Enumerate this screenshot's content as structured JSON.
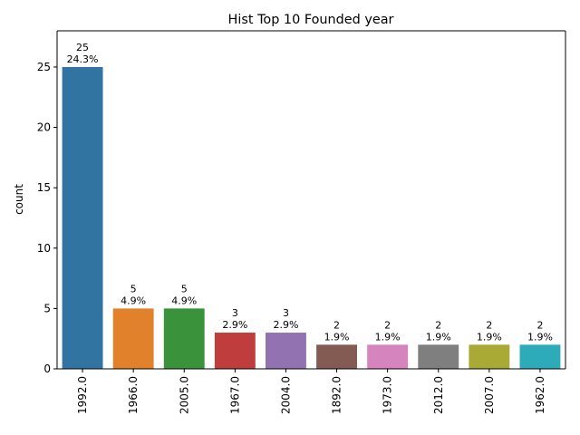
{
  "chart_data": {
    "type": "bar",
    "title": "Hist Top 10 Founded year",
    "xlabel": "",
    "ylabel": "count",
    "ylim": [
      0,
      28
    ],
    "yticks": [
      0,
      5,
      10,
      15,
      20,
      25
    ],
    "grid": false,
    "categories": [
      "1992.0",
      "1966.0",
      "2005.0",
      "1967.0",
      "2004.0",
      "1892.0",
      "1973.0",
      "2012.0",
      "2007.0",
      "1962.0"
    ],
    "values": [
      25,
      5,
      5,
      3,
      3,
      2,
      2,
      2,
      2,
      2
    ],
    "percent_labels": [
      "24.3%",
      "4.9%",
      "4.9%",
      "2.9%",
      "2.9%",
      "1.9%",
      "1.9%",
      "1.9%",
      "1.9%",
      "1.9%"
    ],
    "colors": [
      "#3274a1",
      "#e1812c",
      "#3a923a",
      "#c03d3e",
      "#9372b2",
      "#845b53",
      "#d684bd",
      "#7f7f7f",
      "#a9aa35",
      "#2eabb8"
    ]
  }
}
